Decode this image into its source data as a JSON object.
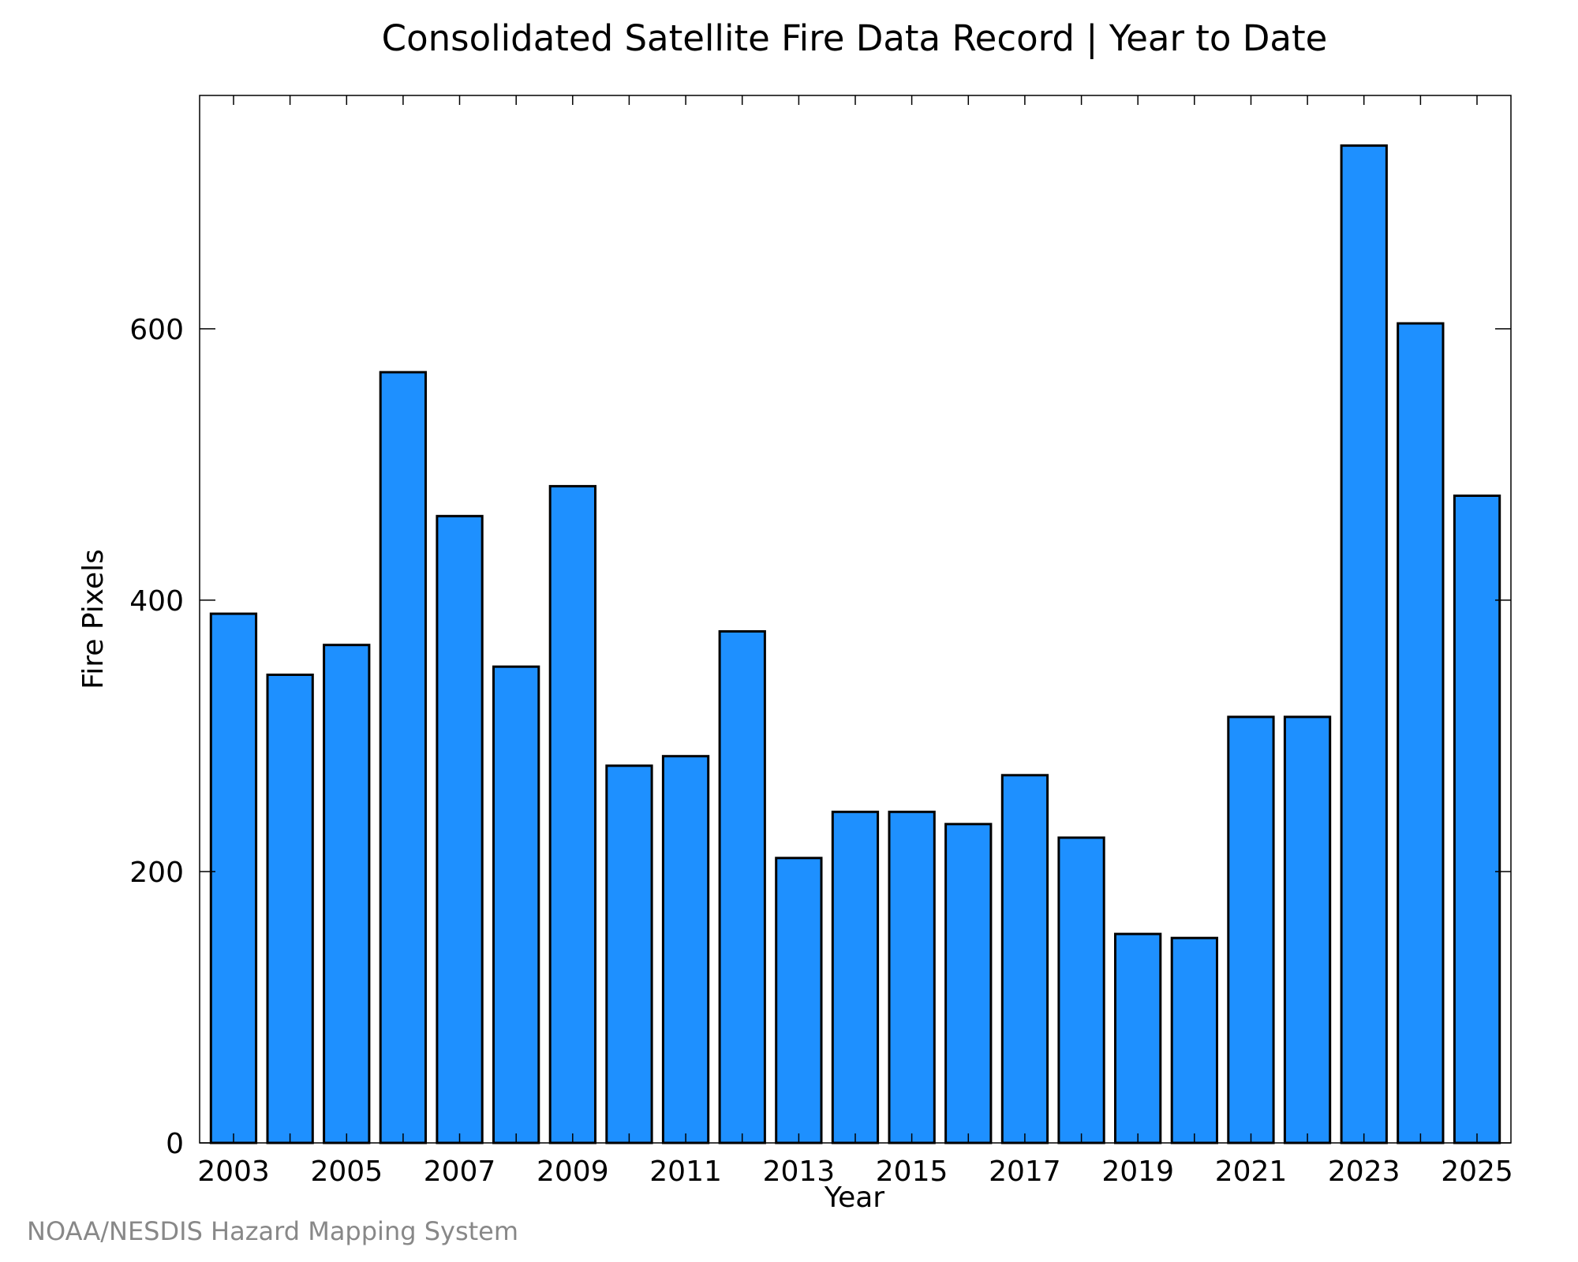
{
  "chart_data": {
    "type": "bar",
    "title": "Consolidated Satellite Fire Data Record | Year to Date",
    "xlabel": "Year",
    "ylabel": "Fire Pixels",
    "categories": [
      2003,
      2004,
      2005,
      2006,
      2007,
      2008,
      2009,
      2010,
      2011,
      2012,
      2013,
      2014,
      2015,
      2016,
      2017,
      2018,
      2019,
      2020,
      2021,
      2022,
      2023,
      2024,
      2025
    ],
    "values": [
      390,
      345,
      367,
      568,
      462,
      351,
      484,
      278,
      285,
      377,
      210,
      244,
      244,
      235,
      271,
      225,
      154,
      151,
      314,
      314,
      735,
      604,
      477
    ],
    "x_tick_labels": [
      "2003",
      "2005",
      "2007",
      "2009",
      "2011",
      "2013",
      "2015",
      "2017",
      "2019",
      "2021",
      "2023",
      "2025"
    ],
    "y_ticks": [
      0,
      200,
      400,
      600
    ],
    "ylim": [
      0,
      772
    ],
    "bar_color": "#1e90ff",
    "grid": false,
    "legend": "none"
  },
  "credit": "NOAA/NESDIS Hazard Mapping System"
}
